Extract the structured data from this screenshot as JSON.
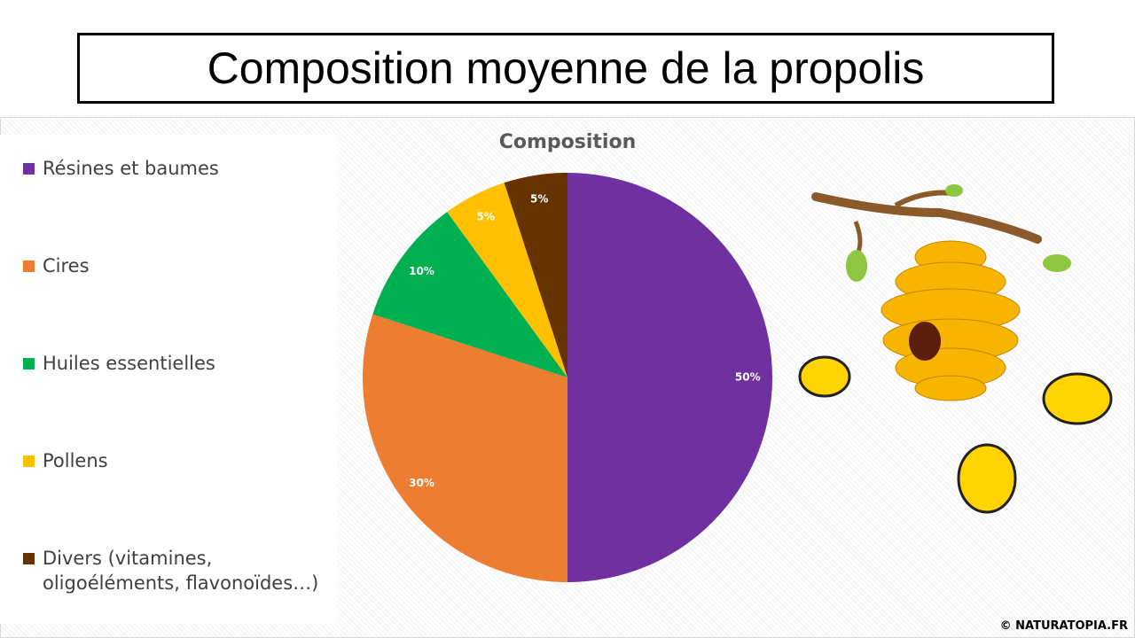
{
  "slide_title": "Composition moyenne de la propolis",
  "chart_data": {
    "type": "pie",
    "title": "Composition",
    "categories": [
      "Résines et baumes",
      "Cires",
      "Huiles essentielles",
      "Pollens",
      "Divers (vitamines, oligoéléments, flavonoïdes…)"
    ],
    "values": [
      50,
      30,
      10,
      5,
      5
    ],
    "value_labels": [
      "50%",
      "30%",
      "10%",
      "5%",
      "5%"
    ],
    "colors": [
      "#7030a0",
      "#ed7d31",
      "#00b050",
      "#ffc000",
      "#663300"
    ],
    "legend": "left"
  },
  "credit": "© NATURATOPIA.FR"
}
